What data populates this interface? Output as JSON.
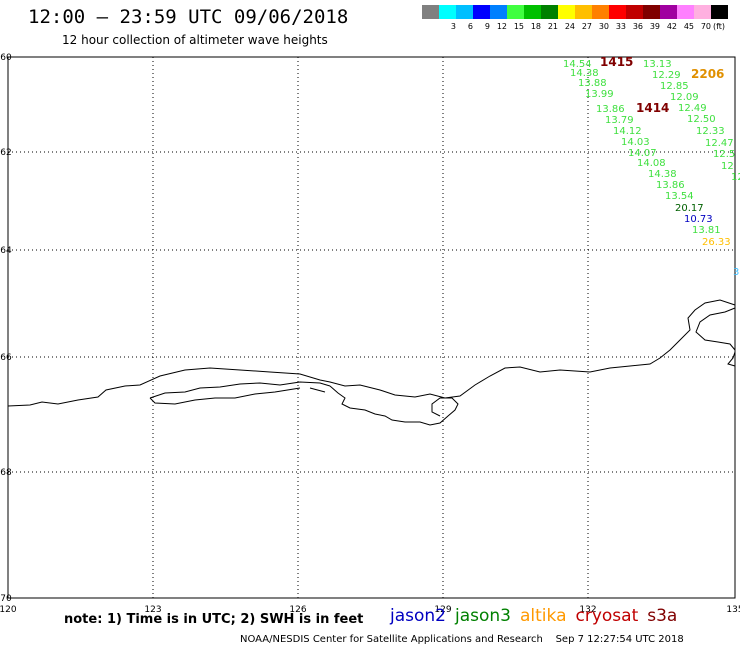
{
  "header": {
    "title": "12:00 — 23:59 UTC 09/06/2018",
    "subtitle": "12 hour collection of altimeter wave heights"
  },
  "colorbar": {
    "unit": "(ft)",
    "colors": [
      "#808080",
      "#00ffff",
      "#00bfff",
      "#0000ff",
      "#0080ff",
      "#40ff40",
      "#00c000",
      "#008000",
      "#ffff00",
      "#ffbf00",
      "#ff8000",
      "#ff0000",
      "#c00000",
      "#800000",
      "#a000a0",
      "#ff80ff",
      "#ffb0e0",
      "#000000"
    ],
    "labels": [
      "3",
      "6",
      "9",
      "12",
      "15",
      "18",
      "21",
      "24",
      "27",
      "30",
      "33",
      "36",
      "39",
      "42",
      "45",
      "70"
    ]
  },
  "axes": {
    "lat_labels": [
      "-60",
      "-62",
      "-64",
      "-66",
      "-68",
      "-70"
    ],
    "lon_labels": [
      "120",
      "123",
      "126",
      "129",
      "132",
      "135"
    ]
  },
  "observations": [
    {
      "text": "14.54",
      "color": "#40e040"
    },
    {
      "text": "14.38",
      "color": "#40e040"
    },
    {
      "text": "13.88",
      "color": "#40e040"
    },
    {
      "text": "13.99",
      "color": "#40e040"
    },
    {
      "text": "13.86",
      "color": "#40e040"
    },
    {
      "text": "13.79",
      "color": "#40e040"
    },
    {
      "text": "14.12",
      "color": "#40e040"
    },
    {
      "text": "14.03",
      "color": "#40e040"
    },
    {
      "text": "14.07",
      "color": "#40e040"
    },
    {
      "text": "14.08",
      "color": "#40e040"
    },
    {
      "text": "14.38",
      "color": "#40e040"
    },
    {
      "text": "13.86",
      "color": "#40e040"
    },
    {
      "text": "13.54",
      "color": "#40e040"
    },
    {
      "text": "20.17",
      "color": "#006000"
    },
    {
      "text": "10.73",
      "color": "#0000c0"
    },
    {
      "text": "13.81",
      "color": "#40e040"
    },
    {
      "text": "26.33",
      "color": "#ffbf00"
    },
    {
      "text": "13.13",
      "color": "#40e040"
    },
    {
      "text": "12.29",
      "color": "#40e040"
    },
    {
      "text": "12.85",
      "color": "#40e040"
    },
    {
      "text": "12.09",
      "color": "#40e040"
    },
    {
      "text": "12.49",
      "color": "#40e040"
    },
    {
      "text": "12.50",
      "color": "#40e040"
    },
    {
      "text": "12.33",
      "color": "#40e040"
    },
    {
      "text": "12.47",
      "color": "#40e040"
    },
    {
      "text": "12.5",
      "color": "#40e040"
    },
    {
      "text": "12",
      "color": "#40e040"
    },
    {
      "text": "12",
      "color": "#40e040"
    },
    {
      "text": "1415",
      "color": "#800000"
    },
    {
      "text": "1414",
      "color": "#800000"
    },
    {
      "text": "2206",
      "color": "#e09000"
    },
    {
      "text": "3",
      "color": "#40c0ff"
    }
  ],
  "note": "note: 1) Time is in UTC; 2) SWH is in feet",
  "legend": [
    {
      "label": "jason2",
      "color": "#0000c0"
    },
    {
      "label": "jason3",
      "color": "#008000"
    },
    {
      "label": "altika",
      "color": "#ff9900"
    },
    {
      "label": "cryosat",
      "color": "#c00000"
    },
    {
      "label": "s3a",
      "color": "#800000"
    }
  ],
  "footer": {
    "credit": "NOAA/NESDIS Center for Satellite Applications and Research",
    "timestamp": "Sep  7 12:27:54 UTC 2018"
  }
}
